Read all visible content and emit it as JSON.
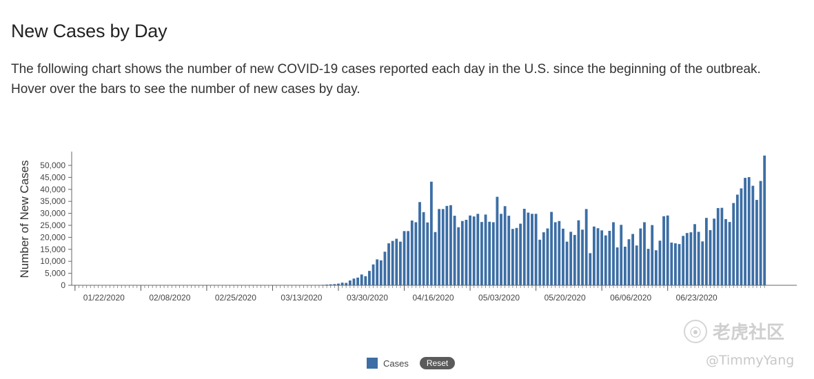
{
  "header": {
    "title": "New Cases by Day",
    "description": "The following chart shows the number of new COVID-19 cases reported each day in the U.S. since the beginning of the outbreak. Hover over the bars to see the number of new cases by day."
  },
  "legend": {
    "series_label": "Cases",
    "reset_label": "Reset"
  },
  "watermark": {
    "logo_text": "老虎社区",
    "handle": "@TimmyYang"
  },
  "colors": {
    "bar": "#3c6ea5"
  },
  "chart_data": {
    "type": "bar",
    "title": "New Cases by Day",
    "xlabel": "",
    "ylabel": "Number of New Cases",
    "ylim": [
      0,
      55000
    ],
    "y_ticks": [
      "0",
      "5,000",
      "10,000",
      "15,000",
      "20,000",
      "25,000",
      "30,000",
      "35,000",
      "40,000",
      "45,000",
      "50,000"
    ],
    "x_tick_labels": [
      "01/22/2020",
      "02/08/2020",
      "02/25/2020",
      "03/13/2020",
      "03/30/2020",
      "04/16/2020",
      "05/03/2020",
      "05/20/2020",
      "06/06/2020",
      "06/23/2020"
    ],
    "start_date": "01/22/2020",
    "series": [
      {
        "name": "Cases",
        "values": [
          1,
          0,
          1,
          0,
          1,
          0,
          0,
          0,
          1,
          0,
          0,
          0,
          0,
          0,
          0,
          0,
          0,
          0,
          0,
          0,
          0,
          0,
          0,
          0,
          0,
          0,
          0,
          0,
          0,
          0,
          0,
          0,
          0,
          0,
          0,
          0,
          0,
          0,
          0,
          0,
          0,
          0,
          0,
          0,
          0,
          0,
          0,
          0,
          0,
          0,
          0,
          1,
          0,
          0,
          1,
          1,
          2,
          3,
          5,
          10,
          30,
          60,
          80,
          150,
          200,
          300,
          400,
          500,
          700,
          1100,
          1000,
          2000,
          2800,
          3200,
          4500,
          3800,
          6000,
          8700,
          10800,
          10400,
          14000,
          17500,
          18500,
          19400,
          18200,
          22600,
          22600,
          27000,
          26300,
          34700,
          30500,
          26200,
          43200,
          22200,
          31800,
          31800,
          33100,
          33400,
          29000,
          24200,
          26800,
          27300,
          29100,
          28700,
          29800,
          26400,
          29500,
          26500,
          26300,
          36900,
          29800,
          33000,
          29000,
          23500,
          23900,
          25700,
          31900,
          30300,
          29800,
          29800,
          19000,
          22100,
          23700,
          30600,
          26300,
          26800,
          23600,
          18200,
          22300,
          21000,
          27100,
          23200,
          31800,
          13400,
          24500,
          23800,
          22900,
          20800,
          22700,
          26300,
          15800,
          25200,
          16100,
          19200,
          21400,
          16600,
          23700,
          26300,
          15200,
          25100,
          14600,
          18600,
          28800,
          29100,
          17800,
          17500,
          17200,
          20600,
          21800,
          22100,
          25500,
          22300,
          18300,
          28100,
          23000,
          27800,
          32200,
          32300,
          27600,
          26400,
          34300,
          37800,
          40400,
          44800,
          45100,
          41500,
          35600,
          43500,
          54100
        ]
      }
    ]
  }
}
